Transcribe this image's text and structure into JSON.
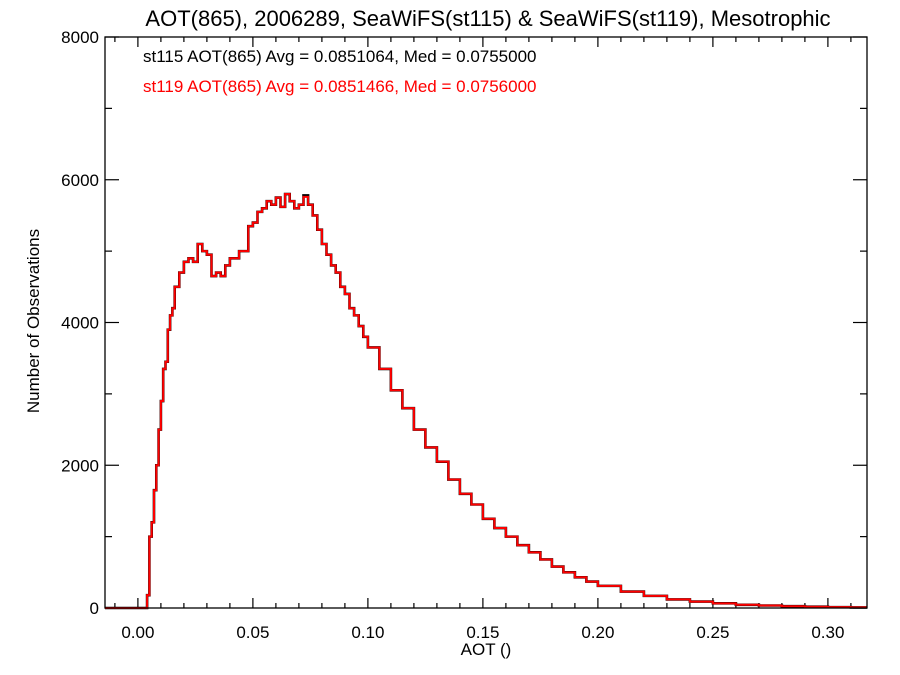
{
  "chart_data": {
    "type": "line",
    "style": "histogram-step",
    "title": "AOT(865), 2006289, SeaWiFS(st115) & SeaWiFS(st119), Mesotrophic",
    "xlabel": "AOT ()",
    "ylabel": "Number of Observations",
    "xlim": [
      -0.0143,
      0.317
    ],
    "ylim": [
      0,
      8000
    ],
    "xticks": [
      0.0,
      0.05,
      0.1,
      0.15,
      0.2,
      0.25,
      0.3
    ],
    "xtick_labels": [
      "0.00",
      "0.05",
      "0.10",
      "0.15",
      "0.20",
      "0.25",
      "0.30"
    ],
    "yticks": [
      0,
      2000,
      4000,
      6000,
      8000
    ],
    "ytick_labels": [
      "0",
      "2000",
      "4000",
      "6000",
      "8000"
    ],
    "grid": false,
    "legend_position": "top-left",
    "annotations": [
      {
        "text": "st115 AOT(865) Avg = 0.0851064, Med = 0.0755000",
        "color": "#000000"
      },
      {
        "text": "st119 AOT(865) Avg = 0.0851466, Med = 0.0756000",
        "color": "#ff0000"
      }
    ],
    "x": [
      -0.0143,
      0.004,
      0.005,
      0.006,
      0.007,
      0.008,
      0.009,
      0.01,
      0.011,
      0.012,
      0.013,
      0.014,
      0.015,
      0.016,
      0.018,
      0.02,
      0.022,
      0.024,
      0.026,
      0.028,
      0.03,
      0.032,
      0.034,
      0.036,
      0.038,
      0.04,
      0.042,
      0.044,
      0.046,
      0.048,
      0.05,
      0.052,
      0.054,
      0.056,
      0.058,
      0.06,
      0.062,
      0.064,
      0.066,
      0.068,
      0.07,
      0.072,
      0.074,
      0.076,
      0.078,
      0.08,
      0.082,
      0.084,
      0.086,
      0.088,
      0.09,
      0.092,
      0.094,
      0.096,
      0.098,
      0.1,
      0.105,
      0.11,
      0.115,
      0.12,
      0.125,
      0.13,
      0.135,
      0.14,
      0.145,
      0.15,
      0.155,
      0.16,
      0.165,
      0.17,
      0.175,
      0.18,
      0.185,
      0.19,
      0.195,
      0.2,
      0.21,
      0.22,
      0.23,
      0.24,
      0.25,
      0.26,
      0.27,
      0.28,
      0.29,
      0.3,
      0.31
    ],
    "series": [
      {
        "name": "st115",
        "color": "#000000",
        "values": [
          0,
          180,
          1000,
          1200,
          1650,
          2000,
          2500,
          2900,
          3350,
          3450,
          3900,
          4100,
          4200,
          4500,
          4700,
          4850,
          4900,
          4850,
          5100,
          5000,
          4950,
          4650,
          4700,
          4650,
          4800,
          4900,
          4900,
          5000,
          5000,
          5350,
          5400,
          5550,
          5600,
          5700,
          5650,
          5750,
          5620,
          5800,
          5700,
          5600,
          5650,
          5780,
          5650,
          5500,
          5300,
          5100,
          4950,
          4800,
          4700,
          4500,
          4400,
          4200,
          4100,
          3950,
          3800,
          3650,
          3350,
          3050,
          2800,
          2500,
          2250,
          2050,
          1800,
          1600,
          1450,
          1250,
          1120,
          1000,
          880,
          780,
          680,
          580,
          500,
          430,
          370,
          310,
          230,
          170,
          120,
          90,
          65,
          45,
          35,
          25,
          18,
          12,
          8
        ]
      },
      {
        "name": "st119",
        "color": "#ff0000",
        "values": [
          0,
          180,
          1000,
          1200,
          1650,
          2000,
          2500,
          2900,
          3350,
          3450,
          3900,
          4100,
          4200,
          4500,
          4700,
          4850,
          4900,
          4850,
          5100,
          5000,
          4950,
          4650,
          4700,
          4650,
          4800,
          4900,
          4900,
          5000,
          5000,
          5350,
          5400,
          5550,
          5600,
          5700,
          5650,
          5750,
          5620,
          5800,
          5700,
          5600,
          5650,
          5760,
          5650,
          5500,
          5300,
          5100,
          4950,
          4800,
          4700,
          4500,
          4400,
          4200,
          4100,
          3950,
          3800,
          3650,
          3350,
          3050,
          2800,
          2500,
          2250,
          2050,
          1800,
          1600,
          1450,
          1250,
          1120,
          1000,
          880,
          780,
          680,
          580,
          500,
          430,
          370,
          310,
          230,
          170,
          120,
          90,
          65,
          45,
          35,
          25,
          18,
          12,
          8
        ]
      }
    ]
  }
}
